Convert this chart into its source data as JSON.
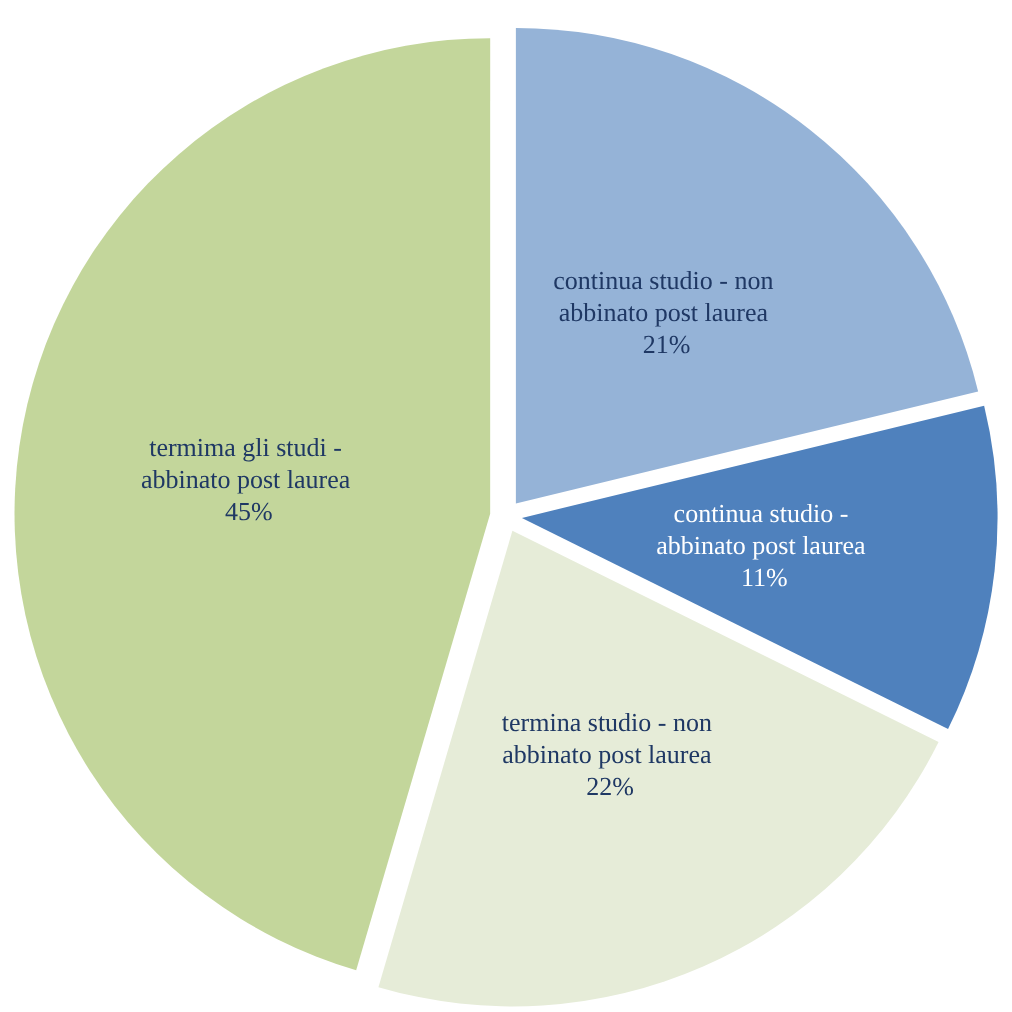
{
  "chart_data": {
    "type": "pie",
    "categories": [
      "continua studio - non abbinato post laurea",
      "continua studio - abbinato post laurea",
      "termina studio - non abbinato post laurea",
      "termima gli studi - abbinato post laurea"
    ],
    "values": [
      21,
      11,
      22,
      45
    ],
    "value_labels": [
      "21%",
      "11%",
      "22%",
      "45%"
    ],
    "colors": [
      "#95b3d7",
      "#4f81bd",
      "#e6ecd8",
      "#c3d69b"
    ]
  }
}
